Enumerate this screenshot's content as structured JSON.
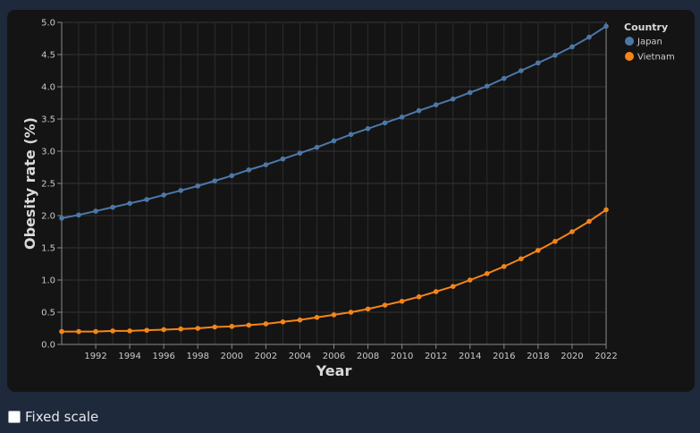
{
  "chart_data": {
    "type": "line",
    "xlabel": "Year",
    "ylabel": "Obesity rate (%)",
    "xlim": [
      1990,
      2022
    ],
    "ylim": [
      0,
      5
    ],
    "x_ticks": [
      1992,
      1994,
      1996,
      1998,
      2000,
      2002,
      2004,
      2006,
      2008,
      2010,
      2012,
      2014,
      2016,
      2018,
      2020,
      2022
    ],
    "y_ticks": [
      "0.0",
      "0.5",
      "1.0",
      "1.5",
      "2.0",
      "2.5",
      "3.0",
      "3.5",
      "4.0",
      "4.5",
      "5.0"
    ],
    "grid": true,
    "legend": {
      "title": "Country",
      "position": "right"
    },
    "x": [
      1990,
      1991,
      1992,
      1993,
      1994,
      1995,
      1996,
      1997,
      1998,
      1999,
      2000,
      2001,
      2002,
      2003,
      2004,
      2005,
      2006,
      2007,
      2008,
      2009,
      2010,
      2011,
      2012,
      2013,
      2014,
      2015,
      2016,
      2017,
      2018,
      2019,
      2020,
      2021,
      2022
    ],
    "series": [
      {
        "name": "Japan",
        "color": "#4c78a8",
        "values": [
          1.96,
          2.01,
          2.07,
          2.13,
          2.19,
          2.25,
          2.32,
          2.39,
          2.46,
          2.54,
          2.62,
          2.71,
          2.79,
          2.88,
          2.97,
          3.06,
          3.16,
          3.26,
          3.35,
          3.44,
          3.53,
          3.63,
          3.72,
          3.81,
          3.91,
          4.01,
          4.13,
          4.25,
          4.37,
          4.49,
          4.62,
          4.77,
          4.94
        ]
      },
      {
        "name": "Vietnam",
        "color": "#f58518",
        "values": [
          0.2,
          0.2,
          0.2,
          0.21,
          0.21,
          0.22,
          0.23,
          0.24,
          0.25,
          0.27,
          0.28,
          0.3,
          0.32,
          0.35,
          0.38,
          0.42,
          0.46,
          0.5,
          0.55,
          0.61,
          0.67,
          0.74,
          0.82,
          0.9,
          1.0,
          1.1,
          1.21,
          1.33,
          1.46,
          1.6,
          1.75,
          1.91,
          2.09
        ]
      }
    ]
  },
  "controls": {
    "fixed_scale_label": "Fixed scale",
    "fixed_scale_checked": false
  }
}
